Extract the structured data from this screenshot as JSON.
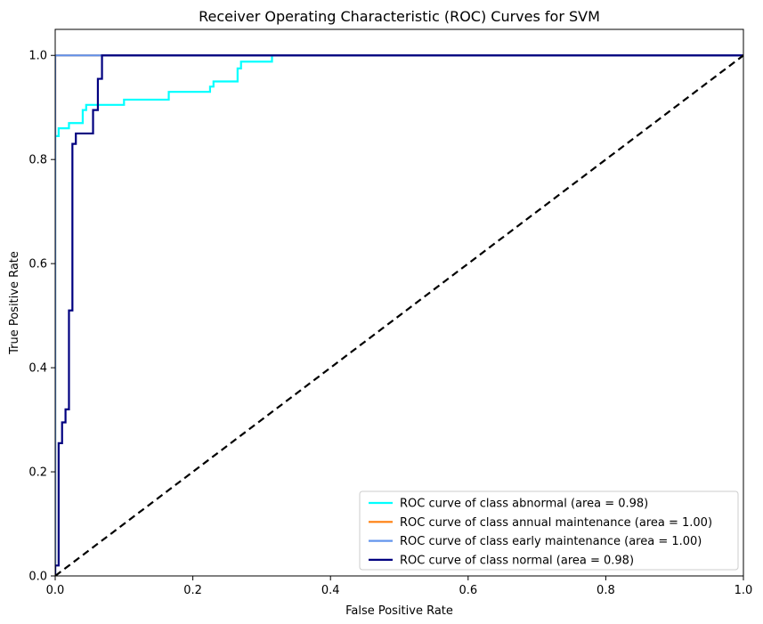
{
  "chart_data": {
    "type": "line",
    "title": "Receiver Operating Characteristic (ROC) Curves for SVM",
    "xlabel": "False Positive Rate",
    "ylabel": "True Positive Rate",
    "xlim": [
      0,
      1
    ],
    "ylim": [
      0,
      1.05
    ],
    "xticks": [
      0.0,
      0.2,
      0.4,
      0.6,
      0.8,
      1.0
    ],
    "yticks": [
      0.0,
      0.2,
      0.4,
      0.6,
      0.8,
      1.0
    ],
    "xtick_labels": [
      "0.0",
      "0.2",
      "0.4",
      "0.6",
      "0.8",
      "1.0"
    ],
    "ytick_labels": [
      "0.0",
      "0.2",
      "0.4",
      "0.6",
      "0.8",
      "1.0"
    ],
    "grid": false,
    "legend_position": "lower-right",
    "series": [
      {
        "name": "ROC curve of class abnormal (area = 0.98)",
        "color": "#00ffff",
        "x": [
          0.0,
          0.0,
          0.005,
          0.005,
          0.02,
          0.02,
          0.04,
          0.04,
          0.045,
          0.045,
          0.1,
          0.1,
          0.165,
          0.165,
          0.225,
          0.225,
          0.23,
          0.23,
          0.265,
          0.265,
          0.27,
          0.27,
          0.315,
          0.315,
          1.0
        ],
        "y": [
          0.0,
          0.845,
          0.845,
          0.86,
          0.86,
          0.87,
          0.87,
          0.895,
          0.895,
          0.905,
          0.905,
          0.915,
          0.915,
          0.93,
          0.93,
          0.94,
          0.94,
          0.95,
          0.95,
          0.975,
          0.975,
          0.988,
          0.988,
          1.0,
          1.0
        ]
      },
      {
        "name": "ROC curve of class annual maintenance (area = 1.00)",
        "color": "#ff7f0e",
        "x": [
          0.0,
          0.0,
          1.0
        ],
        "y": [
          0.0,
          1.0,
          1.0
        ]
      },
      {
        "name": "ROC curve of class early maintenance (area = 1.00)",
        "color": "#6495ed",
        "x": [
          0.0,
          0.0,
          1.0
        ],
        "y": [
          0.0,
          1.0,
          1.0
        ]
      },
      {
        "name": "ROC curve of class normal (area = 0.98)",
        "color": "#000080",
        "x": [
          0.0,
          0.0,
          0.005,
          0.005,
          0.01,
          0.01,
          0.015,
          0.015,
          0.02,
          0.02,
          0.025,
          0.025,
          0.03,
          0.03,
          0.055,
          0.055,
          0.062,
          0.062,
          0.068,
          0.068,
          1.0
        ],
        "y": [
          0.0,
          0.02,
          0.02,
          0.255,
          0.255,
          0.295,
          0.295,
          0.32,
          0.32,
          0.51,
          0.51,
          0.83,
          0.83,
          0.85,
          0.85,
          0.895,
          0.895,
          0.955,
          0.955,
          1.0,
          1.0
        ]
      }
    ],
    "reference_line": {
      "x": [
        0,
        1
      ],
      "y": [
        0,
        1
      ],
      "color": "#000000",
      "style": "dashed"
    }
  }
}
